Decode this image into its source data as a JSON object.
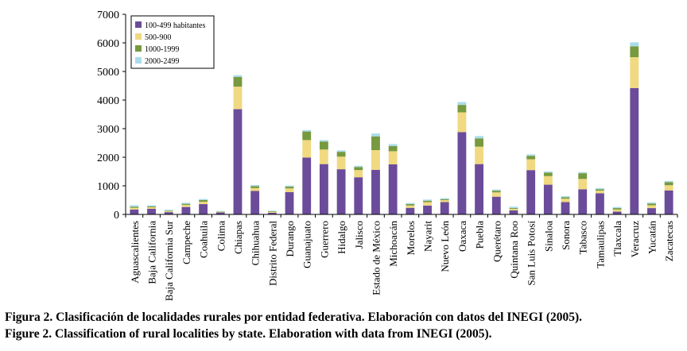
{
  "chart_data": {
    "type": "bar",
    "stacked": true,
    "categories": [
      "Aguascalientes",
      "Baja California",
      "Baja California Sur",
      "Campeche",
      "Coahuila",
      "Colima",
      "Chiapas",
      "Chihuahua",
      "Distrito Federal",
      "Durango",
      "Guanajuato",
      "Guerrero",
      "Hidalgo",
      "Jalisco",
      "Estado de México",
      "Michoacán",
      "Morelos",
      "Nayarit",
      "Nuevo León",
      "Oaxaca",
      "Puebla",
      "Querétaro",
      "Quintana Roo",
      "San Luis Potosí",
      "Sinaloa",
      "Sonora",
      "Tabasco",
      "Tamaulipas",
      "Tlaxcala",
      "Veracruz",
      "Yucatán",
      "Zacatecas"
    ],
    "series": [
      {
        "name": "100-499 habitantes",
        "color": "#6b4c9a",
        "values": [
          170,
          200,
          80,
          260,
          360,
          70,
          3680,
          820,
          60,
          780,
          1990,
          1760,
          1580,
          1300,
          1560,
          1750,
          230,
          310,
          430,
          2880,
          1760,
          620,
          140,
          1550,
          1040,
          430,
          880,
          740,
          100,
          4420,
          220,
          840
        ]
      },
      {
        "name": "500-900",
        "color": "#f0d981",
        "values": [
          60,
          50,
          30,
          70,
          80,
          20,
          790,
          100,
          30,
          130,
          610,
          510,
          440,
          250,
          690,
          460,
          80,
          120,
          70,
          690,
          610,
          150,
          50,
          380,
          300,
          120,
          360,
          90,
          70,
          1080,
          100,
          180
        ]
      },
      {
        "name": "1000-1999",
        "color": "#77993f",
        "values": [
          40,
          30,
          20,
          40,
          60,
          10,
          340,
          70,
          20,
          60,
          300,
          280,
          170,
          110,
          480,
          180,
          50,
          50,
          30,
          260,
          290,
          60,
          30,
          120,
          120,
          50,
          200,
          50,
          50,
          380,
          60,
          110
        ]
      },
      {
        "name": "2000-2499",
        "color": "#a9dcea",
        "values": [
          50,
          40,
          30,
          40,
          40,
          20,
          60,
          40,
          20,
          40,
          50,
          50,
          50,
          40,
          100,
          70,
          40,
          40,
          40,
          100,
          80,
          40,
          50,
          50,
          40,
          40,
          40,
          40,
          40,
          140,
          40,
          40
        ]
      }
    ],
    "ylim": [
      0,
      7000
    ],
    "yticks": [
      0,
      1000,
      2000,
      3000,
      4000,
      5000,
      6000,
      7000
    ],
    "legend_position": "top-left",
    "title": "",
    "xlabel": "",
    "ylabel": ""
  },
  "caption": {
    "spanish": "Figura 2. Clasificación de localidades rurales por entidad federativa. Elaboración con datos del INEGI (2005).",
    "english": "Figure 2. Classification of rural localities by state. Elaboration with data from INEGI (2005)."
  }
}
